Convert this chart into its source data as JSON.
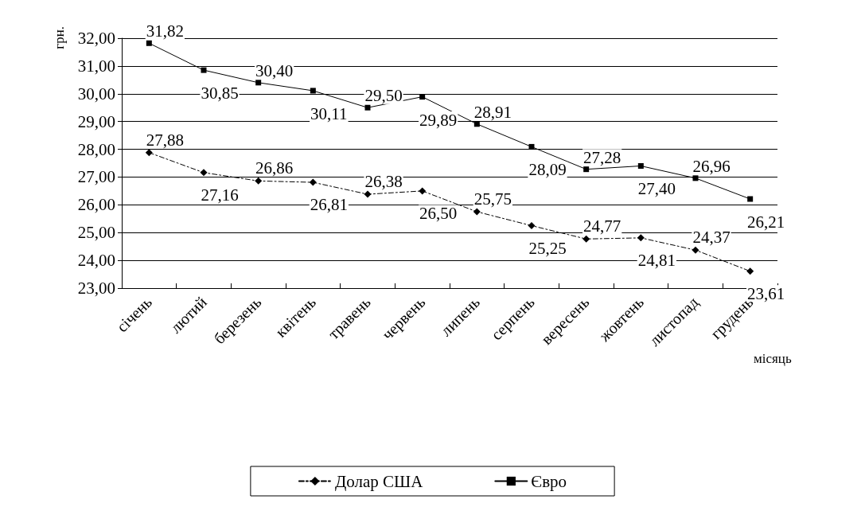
{
  "chart_data": {
    "type": "line",
    "xlabel": "місяць",
    "ylabel": "грн.",
    "categories": [
      "січень",
      "лютий",
      "березень",
      "квітень",
      "травень",
      "червень",
      "липень",
      "серпень",
      "вересень",
      "жовтень",
      "листопад",
      "грудень"
    ],
    "series": [
      {
        "name": "Долар США",
        "color": "#000000",
        "marker": "diamond",
        "line_style": "dashed",
        "values": [
          27.88,
          27.16,
          26.86,
          26.81,
          26.38,
          26.5,
          25.75,
          25.25,
          24.77,
          24.81,
          24.37,
          23.61
        ],
        "value_labels": [
          "27,88",
          "27,16",
          "26,86",
          "26,81",
          "26,38",
          "26,50",
          "25,75",
          "25,25",
          "24,77",
          "24,81",
          "24,37",
          "23,61"
        ]
      },
      {
        "name": "Євро",
        "color": "#000000",
        "marker": "square",
        "line_style": "solid",
        "values": [
          31.82,
          30.85,
          30.4,
          30.11,
          29.5,
          29.89,
          28.91,
          28.09,
          27.28,
          27.4,
          26.96,
          26.21
        ],
        "value_labels": [
          "31,82",
          "30,85",
          "30,40",
          "30,11",
          "29,50",
          "29,89",
          "28,91",
          "28,09",
          "27,28",
          "27,40",
          "26,96",
          "26,21"
        ]
      }
    ],
    "ylim": [
      23,
      32
    ],
    "yticks": [
      {
        "value": 23,
        "label": "23,00"
      },
      {
        "value": 24,
        "label": "24,00"
      },
      {
        "value": 25,
        "label": "25,00"
      },
      {
        "value": 26,
        "label": "26,00"
      },
      {
        "value": 27,
        "label": "27,00"
      },
      {
        "value": 28,
        "label": "28,00"
      },
      {
        "value": 29,
        "label": "29,00"
      },
      {
        "value": 30,
        "label": "30,00"
      },
      {
        "value": 31,
        "label": "31,00"
      },
      {
        "value": 32,
        "label": "32,00"
      }
    ],
    "grid": "y",
    "legend": "bottom"
  }
}
